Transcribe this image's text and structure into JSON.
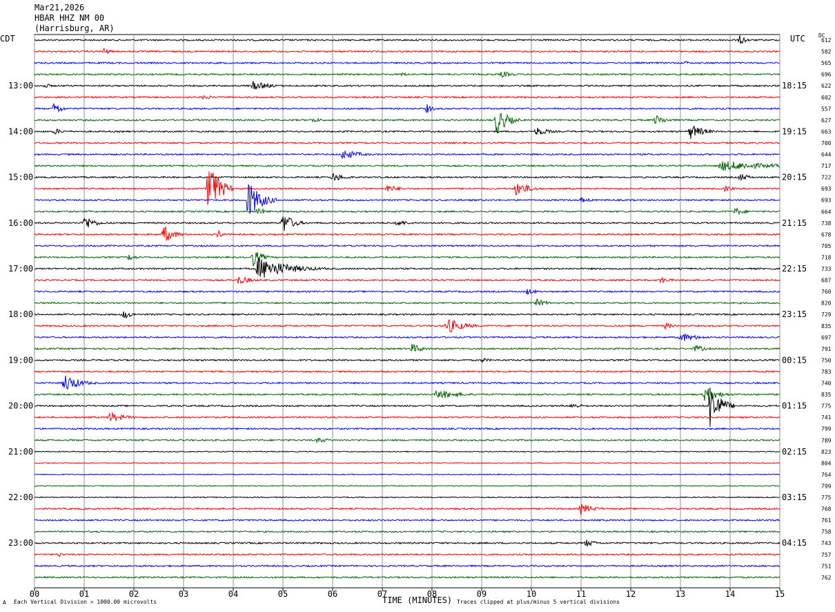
{
  "header": {
    "date": "Mar21,2026",
    "station": "HBAR HHZ NM 00",
    "location": "(Harrisburg, AR)"
  },
  "left_tz": "CDT",
  "right_tz": "UTC",
  "dc_label": "DC",
  "footer": {
    "scale_note": "Each Vertical Division = 1000.00 microvolts",
    "xlabel": "TIME (MINUTES)",
    "clip_note": "Traces clipped at plus/minus 5 vertical divisions",
    "corner_mark": "A"
  },
  "colors": {
    "black": "#000000",
    "red": "#ff0000",
    "blue": "#0000ff",
    "green": "#006400",
    "grid": "#909090"
  },
  "chart_data": {
    "type": "line",
    "title": "",
    "xlabel": "TIME (MINUTES)",
    "xlim": [
      0,
      15
    ],
    "x_ticks": [
      "00",
      "01",
      "02",
      "03",
      "04",
      "05",
      "06",
      "07",
      "08",
      "09",
      "10",
      "11",
      "12",
      "13",
      "14",
      "15"
    ],
    "left_hour_labels": [
      {
        "trace": 4,
        "label": "13:00"
      },
      {
        "trace": 8,
        "label": "14:00"
      },
      {
        "trace": 12,
        "label": "15:00"
      },
      {
        "trace": 16,
        "label": "16:00"
      },
      {
        "trace": 20,
        "label": "17:00"
      },
      {
        "trace": 24,
        "label": "18:00"
      },
      {
        "trace": 28,
        "label": "19:00"
      },
      {
        "trace": 32,
        "label": "20:00"
      },
      {
        "trace": 36,
        "label": "21:00"
      },
      {
        "trace": 40,
        "label": "22:00"
      },
      {
        "trace": 44,
        "label": "23:00"
      }
    ],
    "right_hour_labels": [
      {
        "trace": 4,
        "label": "18:15"
      },
      {
        "trace": 8,
        "label": "19:15"
      },
      {
        "trace": 12,
        "label": "20:15"
      },
      {
        "trace": 16,
        "label": "21:15"
      },
      {
        "trace": 20,
        "label": "22:15"
      },
      {
        "trace": 24,
        "label": "23:15"
      },
      {
        "trace": 28,
        "label": "00:15"
      },
      {
        "trace": 32,
        "label": "01:15"
      },
      {
        "trace": 36,
        "label": "02:15"
      },
      {
        "trace": 40,
        "label": "03:15"
      },
      {
        "trace": 44,
        "label": "04:15"
      }
    ],
    "trace_colors": [
      "black",
      "red",
      "blue",
      "green"
    ],
    "dc_offsets": [
      "612",
      "582",
      "565",
      "696",
      "622",
      "602",
      "557",
      "627",
      "663",
      "700",
      "644",
      "717",
      "722",
      "693",
      "693",
      "664",
      "738",
      "678",
      "705",
      "718",
      "733",
      "687",
      "760",
      "820",
      "729",
      "835",
      "697",
      "791",
      "750",
      "783",
      "740",
      "835",
      "775",
      "741",
      "799",
      "789",
      "823",
      "804",
      "764",
      "799",
      "775",
      "768",
      "761",
      "758",
      "743",
      "757",
      "751",
      "762"
    ],
    "events": [
      {
        "trace": 0,
        "minute": 14.2,
        "amp": 8,
        "dur": 0.3
      },
      {
        "trace": 1,
        "minute": 1.4,
        "amp": 6,
        "dur": 0.3
      },
      {
        "trace": 2,
        "minute": 13.1,
        "amp": 3,
        "dur": 0.3
      },
      {
        "trace": 3,
        "minute": 9.4,
        "amp": 5,
        "dur": 0.6
      },
      {
        "trace": 3,
        "minute": 7.4,
        "amp": 3,
        "dur": 0.4
      },
      {
        "trace": 4,
        "minute": 4.4,
        "amp": 7,
        "dur": 0.8
      },
      {
        "trace": 4,
        "minute": 0.2,
        "amp": 4,
        "dur": 0.4
      },
      {
        "trace": 5,
        "minute": 3.4,
        "amp": 4,
        "dur": 0.5
      },
      {
        "trace": 6,
        "minute": 0.4,
        "amp": 12,
        "dur": 0.3
      },
      {
        "trace": 6,
        "minute": 7.9,
        "amp": 7,
        "dur": 0.3
      },
      {
        "trace": 7,
        "minute": 9.3,
        "amp": 22,
        "dur": 0.5
      },
      {
        "trace": 7,
        "minute": 12.5,
        "amp": 8,
        "dur": 0.5
      },
      {
        "trace": 7,
        "minute": 5.6,
        "amp": 4,
        "dur": 0.5
      },
      {
        "trace": 8,
        "minute": 13.2,
        "amp": 12,
        "dur": 0.6
      },
      {
        "trace": 8,
        "minute": 10.1,
        "amp": 7,
        "dur": 0.6
      },
      {
        "trace": 8,
        "minute": 0.4,
        "amp": 5,
        "dur": 0.5
      },
      {
        "trace": 10,
        "minute": 6.2,
        "amp": 8,
        "dur": 0.8
      },
      {
        "trace": 11,
        "minute": 13.8,
        "amp": 8,
        "dur": 2.4
      },
      {
        "trace": 12,
        "minute": 6.0,
        "amp": 7,
        "dur": 0.6
      },
      {
        "trace": 12,
        "minute": 14.2,
        "amp": 6,
        "dur": 0.5
      },
      {
        "trace": 13,
        "minute": 3.5,
        "amp": 45,
        "dur": 0.5
      },
      {
        "trace": 13,
        "minute": 9.7,
        "amp": 12,
        "dur": 0.6
      },
      {
        "trace": 13,
        "minute": 7.1,
        "amp": 6,
        "dur": 0.6
      },
      {
        "trace": 13,
        "minute": 13.9,
        "amp": 5,
        "dur": 0.4
      },
      {
        "trace": 14,
        "minute": 4.3,
        "amp": 30,
        "dur": 0.6
      },
      {
        "trace": 14,
        "minute": 11.0,
        "amp": 4,
        "dur": 0.6
      },
      {
        "trace": 15,
        "minute": 14.1,
        "amp": 6,
        "dur": 0.5
      },
      {
        "trace": 15,
        "minute": 4.5,
        "amp": 6,
        "dur": 0.4
      },
      {
        "trace": 16,
        "minute": 1.0,
        "amp": 12,
        "dur": 0.5
      },
      {
        "trace": 16,
        "minute": 5.0,
        "amp": 16,
        "dur": 0.5
      },
      {
        "trace": 16,
        "minute": 7.3,
        "amp": 5,
        "dur": 0.6
      },
      {
        "trace": 17,
        "minute": 2.6,
        "amp": 14,
        "dur": 0.5
      },
      {
        "trace": 17,
        "minute": 3.7,
        "amp": 6,
        "dur": 0.3
      },
      {
        "trace": 19,
        "minute": 4.4,
        "amp": 14,
        "dur": 0.4
      },
      {
        "trace": 19,
        "minute": 1.9,
        "amp": 5,
        "dur": 0.4
      },
      {
        "trace": 20,
        "minute": 4.5,
        "amp": 18,
        "dur": 1.4
      },
      {
        "trace": 21,
        "minute": 4.1,
        "amp": 7,
        "dur": 0.6
      },
      {
        "trace": 21,
        "minute": 12.6,
        "amp": 5,
        "dur": 0.5
      },
      {
        "trace": 22,
        "minute": 9.9,
        "amp": 5,
        "dur": 0.5
      },
      {
        "trace": 23,
        "minute": 10.1,
        "amp": 6,
        "dur": 0.6
      },
      {
        "trace": 24,
        "minute": 1.8,
        "amp": 7,
        "dur": 0.4
      },
      {
        "trace": 25,
        "minute": 8.3,
        "amp": 12,
        "dur": 0.8
      },
      {
        "trace": 25,
        "minute": 12.7,
        "amp": 5,
        "dur": 0.4
      },
      {
        "trace": 26,
        "minute": 13.0,
        "amp": 7,
        "dur": 0.9
      },
      {
        "trace": 27,
        "minute": 7.6,
        "amp": 8,
        "dur": 0.5
      },
      {
        "trace": 27,
        "minute": 13.3,
        "amp": 6,
        "dur": 0.5
      },
      {
        "trace": 28,
        "minute": 9.0,
        "amp": 4,
        "dur": 0.4
      },
      {
        "trace": 30,
        "minute": 0.6,
        "amp": 14,
        "dur": 0.7
      },
      {
        "trace": 31,
        "minute": 8.1,
        "amp": 8,
        "dur": 1.0
      },
      {
        "trace": 31,
        "minute": 13.5,
        "amp": 14,
        "dur": 0.6
      },
      {
        "trace": 32,
        "minute": 13.6,
        "amp": 35,
        "dur": 0.5
      },
      {
        "trace": 32,
        "minute": 10.8,
        "amp": 5,
        "dur": 0.5
      },
      {
        "trace": 33,
        "minute": 1.5,
        "amp": 8,
        "dur": 0.8
      },
      {
        "trace": 35,
        "minute": 5.7,
        "amp": 5,
        "dur": 0.5
      },
      {
        "trace": 41,
        "minute": 11.0,
        "amp": 9,
        "dur": 0.6
      },
      {
        "trace": 44,
        "minute": 11.1,
        "amp": 6,
        "dur": 0.5
      },
      {
        "trace": 45,
        "minute": 0.5,
        "amp": 4,
        "dur": 0.2
      }
    ]
  }
}
